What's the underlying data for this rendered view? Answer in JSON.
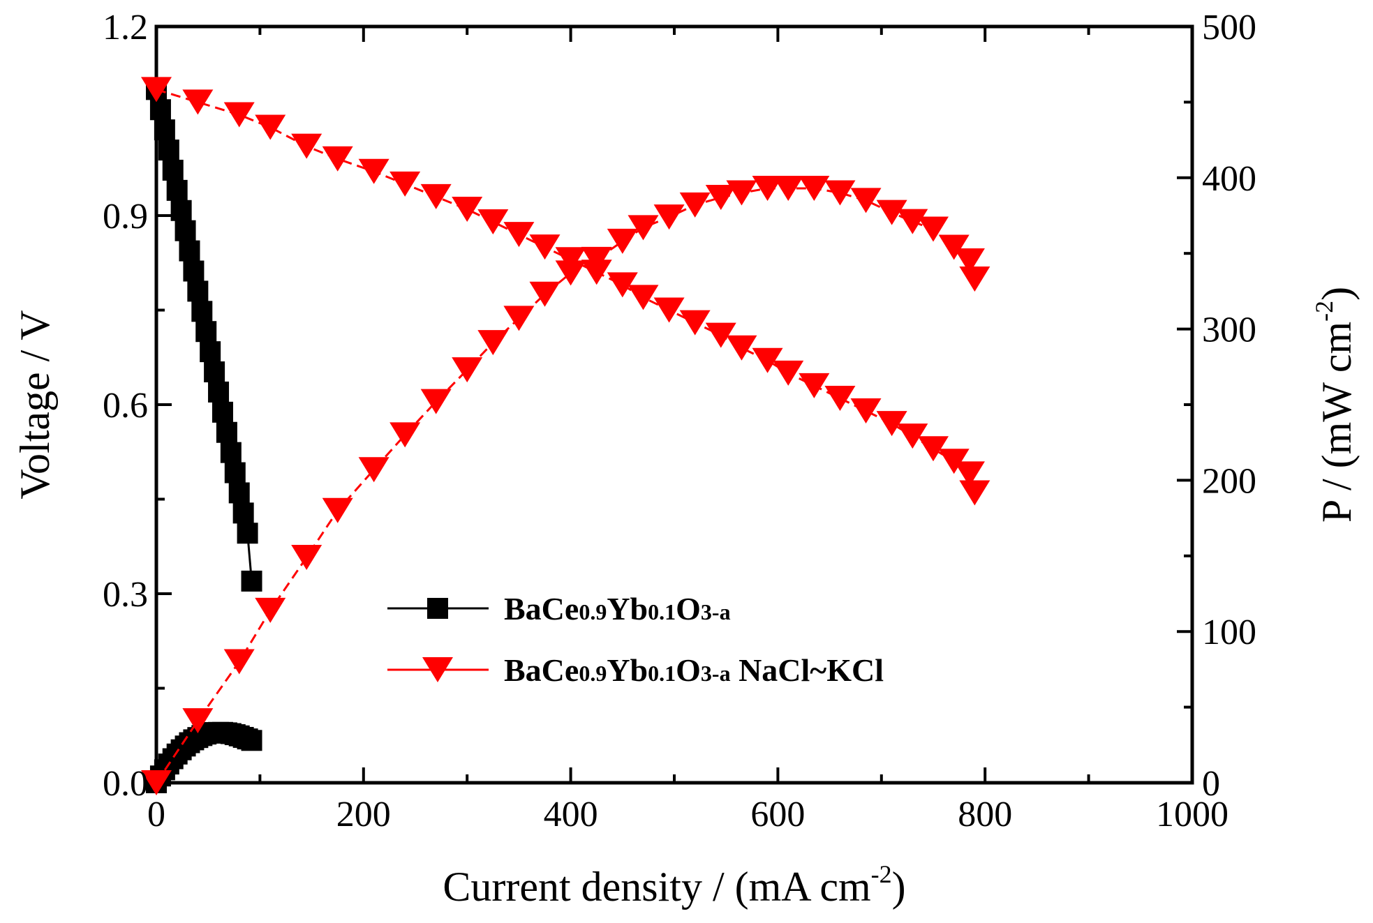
{
  "chart_data": {
    "type": "line",
    "xlabel": "Current density / (mA cm",
    "xlabel_sup": "-2",
    "xlabel_end": ")",
    "ylabel_left": "Voltage / V",
    "ylabel_right": "P / (mW cm",
    "ylabel_right_sup": "-2",
    "ylabel_right_end": ")",
    "xlim": [
      0,
      1000
    ],
    "ylim_left": [
      0,
      1.2
    ],
    "ylim_right": [
      0,
      500
    ],
    "x_ticks": [
      "0",
      "200",
      "400",
      "600",
      "800",
      "1000"
    ],
    "y_left_ticks": [
      "0.0",
      "0.3",
      "0.6",
      "0.9",
      "1.2"
    ],
    "y_right_ticks": [
      "0",
      "100",
      "200",
      "300",
      "400",
      "500"
    ],
    "legend_position": "center",
    "colors": {
      "black_series": "#000000",
      "red_series": "#ff0000"
    },
    "legend": [
      {
        "marker": "square",
        "color": "#000000",
        "parts": [
          [
            "BaCe",
            ""
          ],
          [
            "0.9",
            "sub"
          ],
          [
            "Yb",
            ""
          ],
          [
            "0.1",
            "sub"
          ],
          [
            "O",
            ""
          ],
          [
            "3-a",
            "sub"
          ]
        ]
      },
      {
        "marker": "triangle-down",
        "color": "#ff0000",
        "parts": [
          [
            "BaCe",
            ""
          ],
          [
            "0.9",
            "sub"
          ],
          [
            "Yb",
            ""
          ],
          [
            "0.1",
            "sub"
          ],
          [
            "O",
            ""
          ],
          [
            "3-a",
            "sub"
          ],
          [
            " NaCl~KCl",
            ""
          ]
        ]
      }
    ],
    "series": [
      {
        "axis": "left",
        "color": "#000000",
        "marker": "square",
        "x": [
          0,
          4,
          8,
          12,
          16,
          20,
          24,
          28,
          32,
          36,
          40,
          44,
          48,
          52,
          56,
          60,
          64,
          68,
          72,
          76,
          80,
          84,
          88,
          92
        ],
        "y": [
          1.1,
          1.068,
          1.036,
          1.004,
          0.972,
          0.94,
          0.908,
          0.876,
          0.844,
          0.812,
          0.78,
          0.748,
          0.716,
          0.684,
          0.652,
          0.62,
          0.588,
          0.556,
          0.524,
          0.492,
          0.46,
          0.428,
          0.396,
          0.32
        ]
      },
      {
        "axis": "right",
        "color": "#000000",
        "marker": "square",
        "x": [
          0,
          4,
          8,
          12,
          16,
          20,
          24,
          28,
          32,
          36,
          40,
          44,
          48,
          52,
          56,
          60,
          64,
          68,
          72,
          76,
          80,
          84,
          88,
          92
        ],
        "y": [
          0,
          4.5,
          8.6,
          12.4,
          15.9,
          19.0,
          21.8,
          24.3,
          26.5,
          28.4,
          29.9,
          31.2,
          32.2,
          32.8,
          33.2,
          33.3,
          33.3,
          33.0,
          32.5,
          31.8,
          31.0,
          30.0,
          29.0,
          28.0
        ]
      },
      {
        "axis": "left",
        "color": "#ff0000",
        "marker": "triangle-down",
        "x": [
          0,
          40,
          80,
          110,
          145,
          175,
          210,
          240,
          270,
          300,
          325,
          350,
          375,
          400,
          425,
          450,
          470,
          495,
          520,
          545,
          565,
          590,
          610,
          635,
          660,
          685,
          710,
          730,
          750,
          770,
          785,
          790
        ],
        "y": [
          1.1,
          1.08,
          1.06,
          1.04,
          1.01,
          0.99,
          0.97,
          0.95,
          0.93,
          0.91,
          0.89,
          0.87,
          0.85,
          0.83,
          0.81,
          0.79,
          0.77,
          0.75,
          0.73,
          0.71,
          0.69,
          0.67,
          0.65,
          0.63,
          0.61,
          0.59,
          0.57,
          0.55,
          0.53,
          0.51,
          0.49,
          0.46
        ]
      },
      {
        "axis": "right",
        "color": "#ff0000",
        "marker": "triangle-down",
        "x": [
          0,
          40,
          80,
          110,
          145,
          175,
          210,
          240,
          270,
          300,
          325,
          350,
          375,
          400,
          425,
          450,
          470,
          495,
          520,
          545,
          565,
          590,
          610,
          635,
          660,
          685,
          710,
          730,
          750,
          770,
          785,
          790
        ],
        "y": [
          0,
          41,
          80,
          114,
          149,
          180,
          207,
          230,
          252,
          273,
          291,
          307,
          323,
          337,
          346,
          358,
          367,
          374,
          382,
          387,
          390,
          393,
          393,
          393,
          390,
          385,
          377,
          371,
          366,
          354,
          345,
          333
        ]
      }
    ]
  }
}
